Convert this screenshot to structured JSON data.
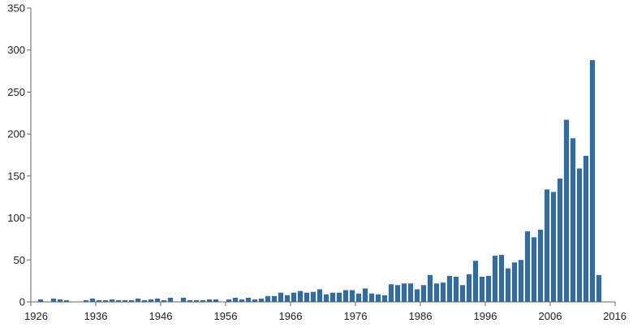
{
  "chart_data": {
    "type": "bar",
    "title": "",
    "xlabel": "",
    "ylabel": "",
    "x_start": 1926,
    "x_end": 2016,
    "ylim": [
      0,
      350
    ],
    "y_ticks": [
      0,
      50,
      100,
      150,
      200,
      250,
      300,
      350
    ],
    "x_ticks": [
      1926,
      1936,
      1946,
      1956,
      1966,
      1976,
      1986,
      1996,
      2006,
      2016
    ],
    "y_tick_labels": [
      "0",
      "50",
      "100",
      "150",
      "200",
      "250",
      "300",
      "350"
    ],
    "x_tick_labels": [
      "1926",
      "1936",
      "1946",
      "1956",
      "1966",
      "1976",
      "1986",
      "1996",
      "2006",
      "2016"
    ],
    "grid": false,
    "legend": "none",
    "bar_color": "#336b9c",
    "axis_color": "#666666",
    "years": [
      1926,
      1927,
      1928,
      1929,
      1930,
      1931,
      1932,
      1933,
      1934,
      1935,
      1936,
      1937,
      1938,
      1939,
      1940,
      1941,
      1942,
      1943,
      1944,
      1945,
      1946,
      1947,
      1948,
      1949,
      1950,
      1951,
      1952,
      1953,
      1954,
      1955,
      1956,
      1957,
      1958,
      1959,
      1960,
      1961,
      1962,
      1963,
      1964,
      1965,
      1966,
      1967,
      1968,
      1969,
      1970,
      1971,
      1972,
      1973,
      1974,
      1975,
      1976,
      1977,
      1978,
      1979,
      1980,
      1981,
      1982,
      1983,
      1984,
      1985,
      1986,
      1987,
      1988,
      1989,
      1990,
      1991,
      1992,
      1993,
      1994,
      1995,
      1996,
      1997,
      1998,
      1999,
      2000,
      2001,
      2002,
      2003,
      2004,
      2005,
      2006,
      2007,
      2008,
      2009,
      2010,
      2011,
      2012,
      2013,
      2014
    ],
    "values": [
      0,
      3,
      0,
      4,
      3,
      2,
      0,
      0,
      2,
      4,
      2,
      2,
      3,
      2,
      2,
      2,
      4,
      2,
      3,
      4,
      2,
      5,
      0,
      5,
      2,
      2,
      2,
      3,
      3,
      0,
      3,
      5,
      3,
      5,
      3,
      4,
      7,
      7,
      11,
      8,
      11,
      13,
      11,
      12,
      15,
      9,
      11,
      11,
      14,
      14,
      10,
      16,
      10,
      9,
      8,
      21,
      20,
      22,
      22,
      15,
      20,
      32,
      22,
      23,
      31,
      30,
      20,
      33,
      49,
      30,
      31,
      55,
      56,
      40,
      47,
      50,
      84,
      77,
      86,
      134,
      131,
      147,
      217,
      195,
      159,
      174,
      288,
      32,
      0
    ]
  }
}
